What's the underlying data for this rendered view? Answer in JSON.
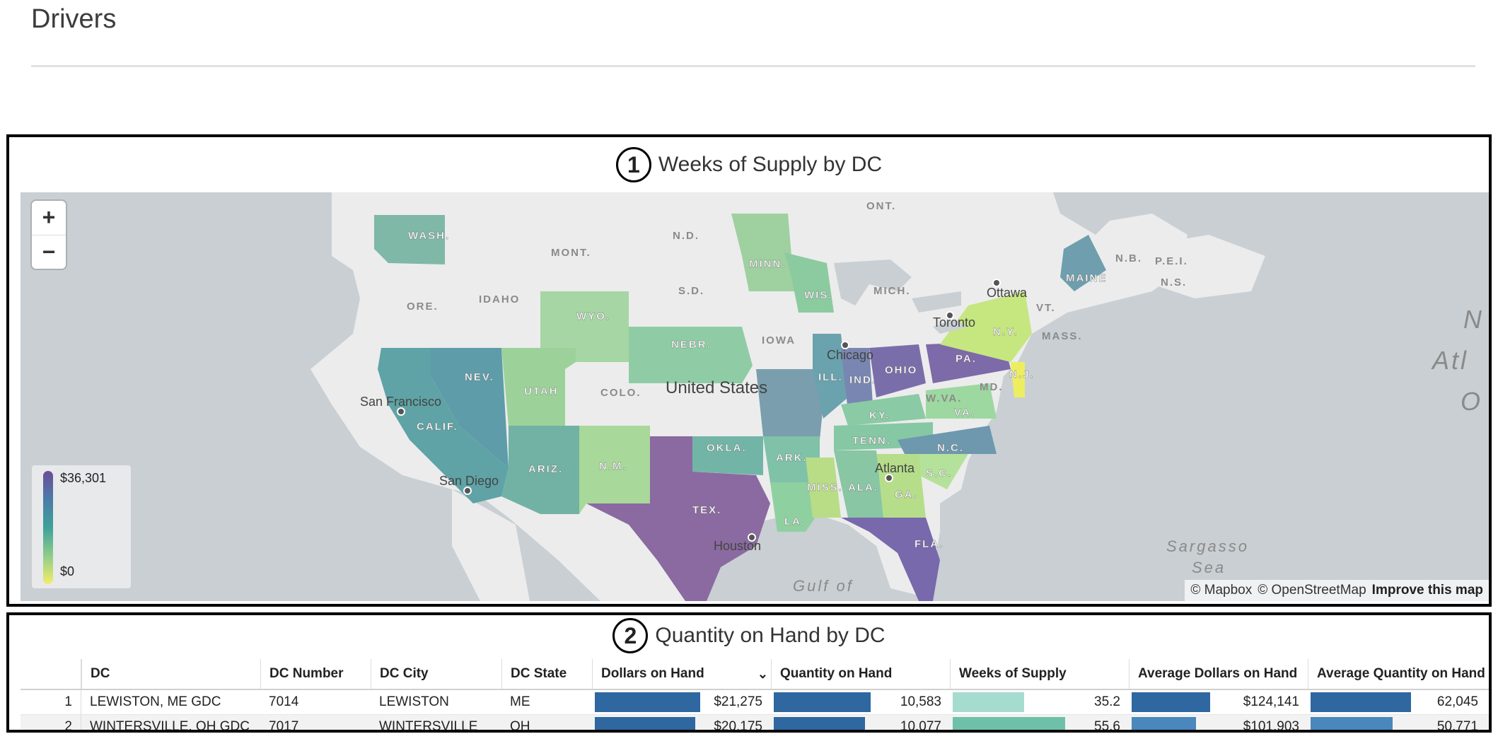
{
  "page": {
    "title": "Drivers"
  },
  "map_panel": {
    "number": "1",
    "title": "Weeks of Supply by DC",
    "zoom_in": "+",
    "zoom_out": "−",
    "legend": {
      "max": "$36,301",
      "min": "$0"
    },
    "attribution": {
      "mapbox": "© Mapbox",
      "osm": "© OpenStreetMap",
      "improve": "Improve this map"
    },
    "labels": {
      "wash": "WASH.",
      "mont": "MONT.",
      "nd": "N.D.",
      "minn": "MINN.",
      "ont": "ONT.",
      "ore": "ORE.",
      "idaho": "IDAHO",
      "sd": "S.D.",
      "wyo": "WYO.",
      "wis": "WIS.",
      "mich": "MICH.",
      "nebr": "NEBR.",
      "iowa": "IOWA",
      "nev": "NEV.",
      "utah": "UTAH",
      "colo": "COLO.",
      "ill": "ILL.",
      "ind": "IND.",
      "ohio": "OHIO",
      "pa": "PA.",
      "ny": "N.Y.",
      "vt": "VT.",
      "mass": "MASS.",
      "maine": "MAINE",
      "nb": "N.B.",
      "pei": "P.E.I.",
      "ns": "N.S.",
      "nj": "N.J.",
      "md": "MD.",
      "wva": "W.VA.",
      "va": "VA.",
      "ky": "KY.",
      "tenn": "TENN.",
      "nc": "N.C.",
      "sc": "S.C.",
      "ga": "GA.",
      "ala": "ALA.",
      "miss": "MISS.",
      "la": "LA.",
      "ark": "ARK.",
      "okla": "OKLA.",
      "tex": "TEX.",
      "nm": "N.M.",
      "ariz": "ARIZ.",
      "calif": "CALIF.",
      "fla": "FLA.",
      "us": "United States",
      "sf": "San Francisco",
      "sd_city": "San Diego",
      "chicago": "Chicago",
      "toronto": "Toronto",
      "ottawa": "Ottawa",
      "atlanta": "Atlanta",
      "houston": "Houston",
      "gulf": "Gulf of",
      "sargasso": "Sargasso",
      "sea": "Sea",
      "atl1": "N",
      "atl2": "Atl",
      "atl3": "O"
    },
    "colors": {
      "ocean": "#c9cfd3",
      "land": "#eeeeee",
      "low": "#f4ec6a",
      "high": "#6b4c9a"
    }
  },
  "table_panel": {
    "number": "2",
    "title": "Quantity on Hand by DC",
    "columns": [
      "DC",
      "DC Number",
      "DC City",
      "DC State",
      "Dollars on Hand",
      "Quantity on Hand",
      "Weeks of Supply",
      "Average Dollars on Hand",
      "Average Quantity on Hand"
    ],
    "sort_icon": "chevron-down",
    "rows": [
      {
        "idx": "1",
        "dc": "LEWISTON, ME GDC",
        "dc_number": "7014",
        "city": "LEWISTON",
        "state": "ME",
        "dollars": "$21,275",
        "dollars_frac": 0.59,
        "qty": "10,583",
        "qty_frac": 0.54,
        "wos": "35.2",
        "wos_frac": 0.4,
        "avg_dollars": "$124,141",
        "avg_dollars_frac": 0.44,
        "avg_qty": "62,045",
        "avg_qty_frac": 0.56
      },
      {
        "idx": "2",
        "dc": "WINTERSVILLE, OH GDC",
        "dc_number": "7017",
        "city": "WINTERSVILLE",
        "state": "OH",
        "dollars": "$20,175",
        "dollars_frac": 0.56,
        "qty": "10,077",
        "qty_frac": 0.51,
        "wos": "55.6",
        "wos_frac": 0.63,
        "avg_dollars": "$101,903",
        "avg_dollars_frac": 0.36,
        "avg_qty": "50,771",
        "avg_qty_frac": 0.46
      }
    ],
    "bar_colors": {
      "blue": "#2f67a0",
      "blue_light": "#4a87bd",
      "teal_light": "#a6dbd0",
      "teal": "#6ec1a8"
    }
  }
}
